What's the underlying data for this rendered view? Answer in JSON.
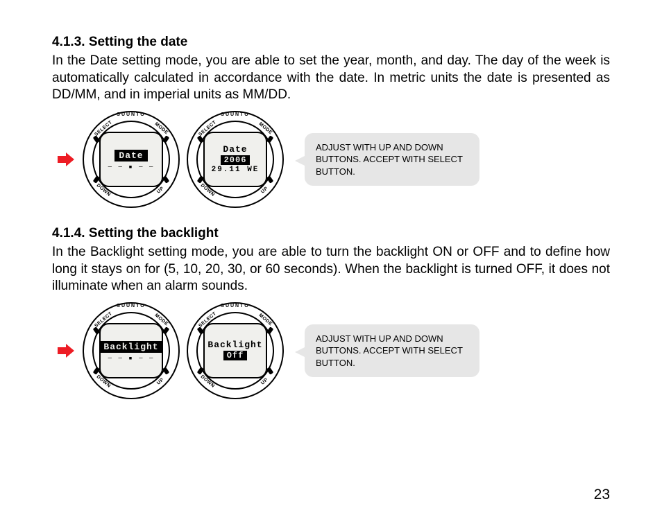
{
  "section1": {
    "heading": "4.1.3. Setting the date",
    "body": "In the Date setting mode, you are able to set the year, month, and day. The day of the week is automatically calculated in accordance with the date. In metric units the date is presented as DD/MM, and in imperial units as MM/DD.",
    "watch_brand": "SUUNTO",
    "labels": {
      "select": "SELECT",
      "mode": "MODE",
      "down": "DOWN",
      "up": "UP"
    },
    "watch1": {
      "line_inverted": "Date",
      "subline": "— — ▪ — —"
    },
    "watch2": {
      "line1": "Date",
      "line_inverted": "2006",
      "line3": "29.11 WE"
    },
    "callout": "ADJUST WITH UP AND DOWN BUTTONS. ACCEPT WITH SELECT BUTTON."
  },
  "section2": {
    "heading": "4.1.4. Setting the backlight",
    "body": "In the Backlight setting mode, you are able to turn the backlight ON or OFF and to define how long it stays on for (5, 10, 20, 30, or 60 seconds). When the backlight is turned OFF, it does not illuminate when an alarm sounds.",
    "watch_brand": "SUUNTO",
    "labels": {
      "select": "SELECT",
      "mode": "MODE",
      "down": "DOWN",
      "up": "UP"
    },
    "watch1": {
      "line_inverted": "Backlight",
      "subline": "— — ▪ — —"
    },
    "watch2": {
      "line1": "Backlight",
      "line_inverted": "Off"
    },
    "callout": "ADJUST WITH UP AND DOWN BUTTONS. ACCEPT WITH SELECT BUTTON."
  },
  "pageNumber": "23"
}
